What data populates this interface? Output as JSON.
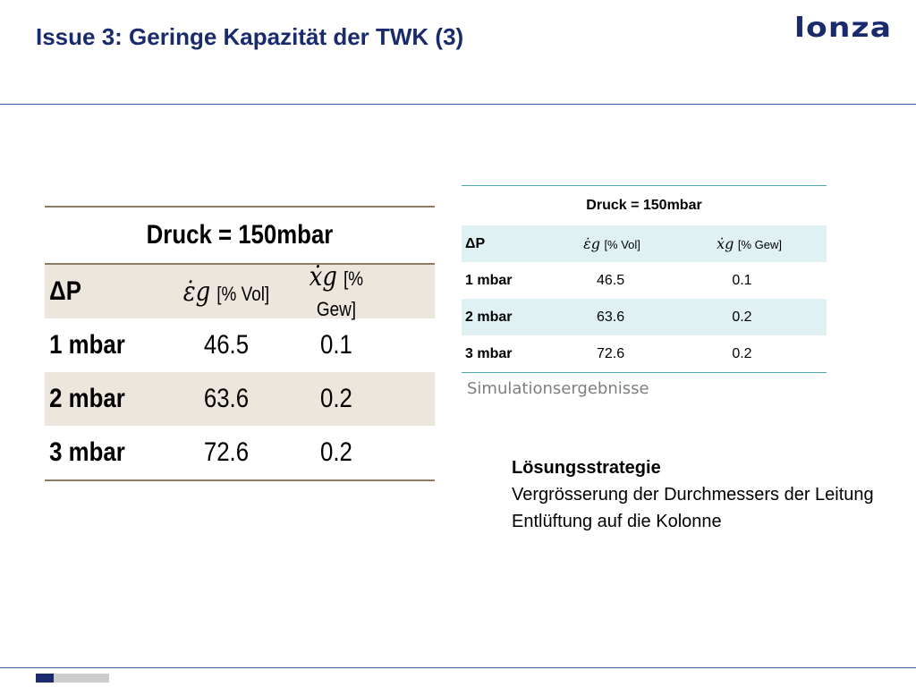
{
  "header": {
    "title": "Issue 3: Geringe Kapazität der TWK (3)",
    "logo": "Lonza"
  },
  "big_table": {
    "title": "Druck = 150mbar",
    "columns": [
      "ΔP",
      "[% Vol]",
      "[% Gew]"
    ],
    "col_symbols": [
      "ε̇g",
      "ẋg"
    ],
    "rows": [
      {
        "dp": "1 mbar",
        "vol": "46.5",
        "gew": "0.1"
      },
      {
        "dp": "2 mbar",
        "vol": "63.6",
        "gew": "0.2"
      },
      {
        "dp": "3 mbar",
        "vol": "72.6",
        "gew": "0.2"
      }
    ]
  },
  "small_table": {
    "title": "Druck = 150mbar",
    "columns": [
      "ΔP",
      "[% Vol]",
      "[% Gew]"
    ],
    "col_symbols": [
      "ε̇g",
      "ẋg"
    ],
    "rows": [
      {
        "dp": "1 mbar",
        "vol": "46.5",
        "gew": "0.1"
      },
      {
        "dp": "2 mbar",
        "vol": "63.6",
        "gew": "0.2"
      },
      {
        "dp": "3 mbar",
        "vol": "72.6",
        "gew": "0.2"
      }
    ]
  },
  "caption": "Simulationsergebnisse",
  "strategy": {
    "heading": "Lösungsstrategie",
    "lines": [
      "Vergrösserung der Durchmessers der Leitung",
      "Entlüftung auf die Kolonne"
    ]
  },
  "colors": {
    "title": "#1a2b6d",
    "rule": "#3a63a8",
    "small_table_alt": "#dff1f3",
    "big_table_alt": "#ede6dc"
  }
}
